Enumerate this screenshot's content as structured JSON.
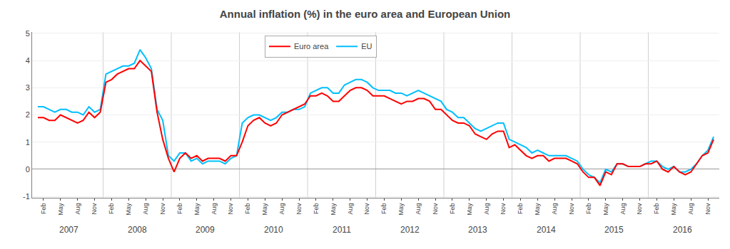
{
  "chart_data": {
    "type": "line",
    "title": "Annual inflation (%) in the euro area and European Union",
    "categories": [
      null,
      "Feb",
      null,
      null,
      "May",
      null,
      null,
      "Aug",
      null,
      null,
      "Nov",
      null,
      null,
      "Feb",
      null,
      null,
      "May",
      null,
      null,
      "Aug",
      null,
      null,
      "Nov",
      null,
      null,
      "Feb",
      null,
      null,
      "May",
      null,
      null,
      "Aug",
      null,
      null,
      "Nov",
      null,
      null,
      "Feb",
      null,
      null,
      "May",
      null,
      null,
      "Aug",
      null,
      null,
      "Nov",
      null,
      null,
      "Feb",
      null,
      null,
      "May",
      null,
      null,
      "Aug",
      null,
      null,
      "Nov",
      null,
      null,
      "Feb",
      null,
      null,
      "May",
      null,
      null,
      "Aug",
      null,
      null,
      "Nov",
      null,
      null,
      "Feb",
      null,
      null,
      "May",
      null,
      null,
      "Aug",
      null,
      null,
      "Nov",
      null,
      null,
      "Feb",
      null,
      null,
      "May",
      null,
      null,
      "Aug",
      null,
      null,
      "Nov",
      null,
      null,
      "Feb",
      null,
      null,
      "May",
      null,
      null,
      "Aug",
      null,
      null,
      "Nov",
      null,
      null,
      "Feb",
      null,
      null,
      "May",
      null,
      null,
      "Aug",
      null,
      null,
      "Nov",
      null
    ],
    "series": [
      {
        "name": "EU",
        "color": "#00BFFF",
        "values": [
          2.3,
          2.3,
          2.2,
          2.1,
          2.2,
          2.2,
          2.1,
          2.1,
          2.0,
          2.3,
          2.1,
          2.2,
          3.5,
          3.6,
          3.7,
          3.8,
          3.8,
          3.9,
          4.4,
          4.1,
          3.7,
          2.2,
          1.8,
          0.5,
          0.3,
          0.6,
          0.6,
          0.3,
          0.4,
          0.2,
          0.3,
          0.3,
          0.3,
          0.2,
          0.4,
          0.5,
          1.7,
          1.9,
          2.0,
          2.0,
          1.9,
          1.8,
          1.9,
          2.1,
          2.1,
          2.2,
          2.2,
          2.3,
          2.8,
          2.9,
          3.0,
          3.0,
          2.8,
          2.8,
          3.1,
          3.2,
          3.3,
          3.3,
          3.2,
          3.0,
          2.9,
          2.9,
          2.9,
          2.8,
          2.8,
          2.7,
          2.8,
          2.9,
          2.8,
          2.7,
          2.6,
          2.5,
          2.2,
          2.1,
          1.9,
          1.9,
          1.7,
          1.5,
          1.4,
          1.5,
          1.6,
          1.7,
          1.7,
          1.1,
          1.0,
          0.9,
          0.8,
          0.6,
          0.7,
          0.6,
          0.5,
          0.5,
          0.5,
          0.5,
          0.4,
          0.3,
          0.0,
          -0.2,
          -0.3,
          -0.5,
          0.0,
          -0.1,
          0.2,
          0.2,
          0.1,
          0.1,
          0.1,
          0.2,
          0.3,
          0.3,
          0.1,
          0.0,
          0.1,
          -0.1,
          -0.1,
          0.0,
          0.2,
          0.5,
          0.7,
          1.2
        ]
      },
      {
        "name": "Euro area",
        "color": "#FF0000",
        "values": [
          1.9,
          1.9,
          1.8,
          1.8,
          2.0,
          1.9,
          1.8,
          1.7,
          1.8,
          2.1,
          1.9,
          2.1,
          3.2,
          3.3,
          3.5,
          3.6,
          3.7,
          3.7,
          4.0,
          3.8,
          3.6,
          2.1,
          1.1,
          0.4,
          -0.1,
          0.4,
          0.6,
          0.4,
          0.5,
          0.3,
          0.4,
          0.4,
          0.4,
          0.3,
          0.5,
          0.5,
          1.0,
          1.6,
          1.8,
          1.9,
          1.7,
          1.6,
          1.7,
          2.0,
          2.1,
          2.2,
          2.3,
          2.4,
          2.7,
          2.7,
          2.8,
          2.7,
          2.5,
          2.5,
          2.7,
          2.9,
          3.0,
          3.0,
          2.9,
          2.7,
          2.7,
          2.7,
          2.6,
          2.5,
          2.4,
          2.5,
          2.5,
          2.6,
          2.6,
          2.5,
          2.2,
          2.2,
          2.0,
          1.8,
          1.7,
          1.7,
          1.6,
          1.3,
          1.2,
          1.1,
          1.3,
          1.4,
          1.4,
          0.8,
          0.9,
          0.7,
          0.5,
          0.4,
          0.5,
          0.5,
          0.3,
          0.4,
          0.4,
          0.4,
          0.3,
          0.2,
          -0.1,
          -0.3,
          -0.3,
          -0.6,
          -0.1,
          -0.2,
          0.2,
          0.2,
          0.1,
          0.1,
          0.1,
          0.2,
          0.2,
          0.3,
          0.0,
          -0.1,
          0.1,
          -0.1,
          -0.2,
          -0.1,
          0.2,
          0.5,
          0.6,
          1.1
        ]
      }
    ],
    "ylim": [
      -1.05,
      5.05
    ],
    "yticks": [
      -1,
      0,
      1,
      2,
      3,
      4,
      5
    ],
    "grid": true,
    "legend": "upper center",
    "annotations": [
      "2007",
      "2008",
      "2009",
      "2010",
      "2011",
      "2012",
      "2013",
      "2014",
      "2015",
      "2016"
    ]
  }
}
